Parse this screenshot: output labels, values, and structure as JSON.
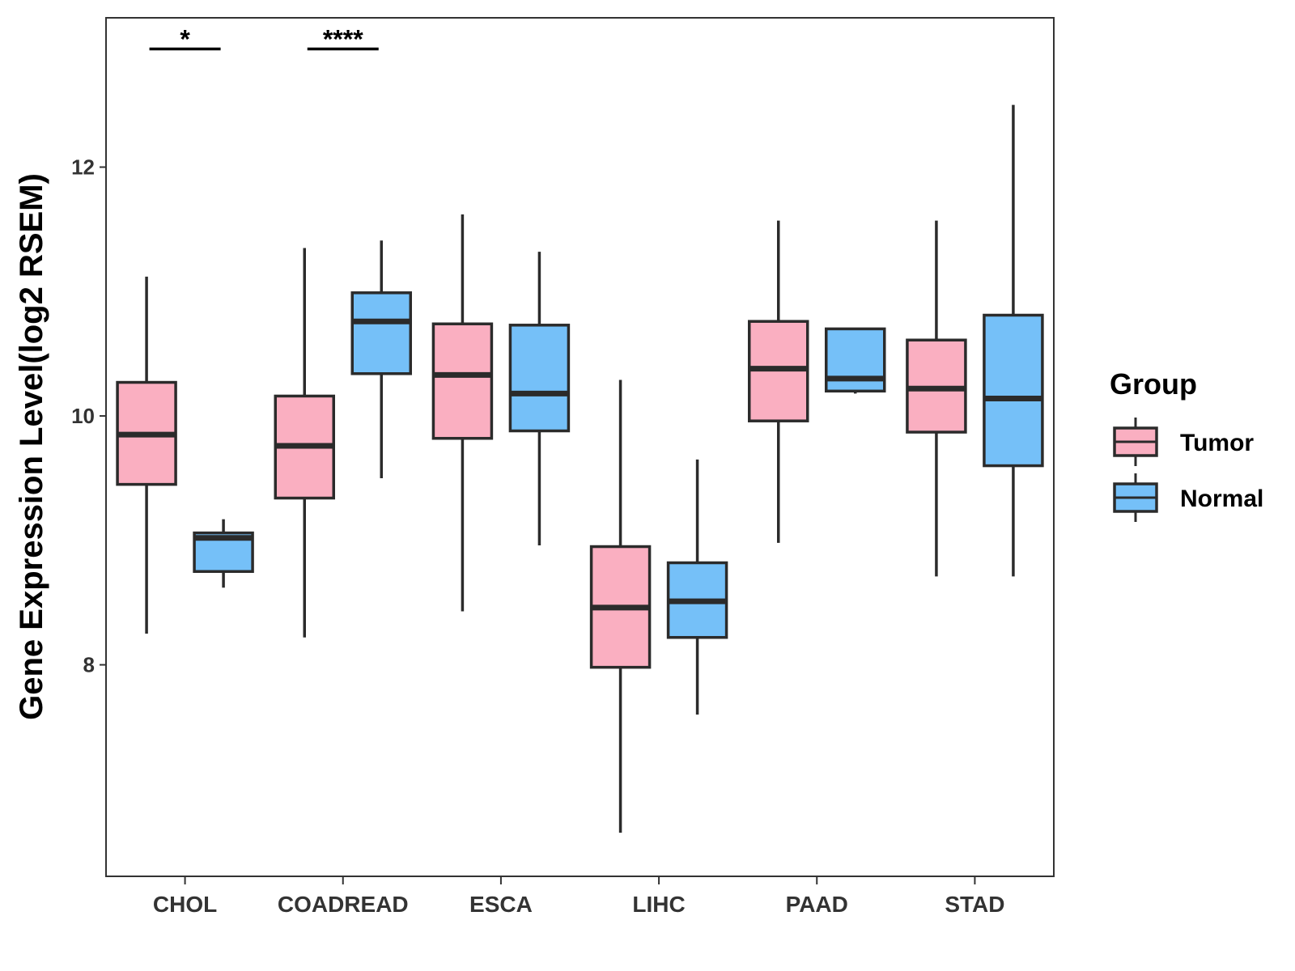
{
  "chart_data": {
    "type": "boxplot",
    "title": "",
    "xlabel": "",
    "ylabel": "Gene Expression Level(log2 RSEM)",
    "ylim": [
      6.3,
      13.2
    ],
    "yticks": [
      8,
      10,
      12
    ],
    "ytick_labels": [
      "8",
      "10",
      "12"
    ],
    "grid": false,
    "categories": [
      "CHOL",
      "COADREAD",
      "ESCA",
      "LIHC",
      "PAAD",
      "STAD"
    ],
    "legend": {
      "title": "Group",
      "position": "right",
      "entries": [
        {
          "name": "Tumor",
          "color": "#FAAFC1"
        },
        {
          "name": "Normal",
          "color": "#75C0F8"
        }
      ]
    },
    "series": [
      {
        "name": "Tumor",
        "color": "#FAAFC1",
        "boxes": [
          {
            "category": "CHOL",
            "whisker_low": 8.25,
            "q1": 9.45,
            "median": 9.85,
            "q3": 10.27,
            "whisker_high": 11.12
          },
          {
            "category": "COADREAD",
            "whisker_low": 8.22,
            "q1": 9.34,
            "median": 9.76,
            "q3": 10.16,
            "whisker_high": 11.35
          },
          {
            "category": "ESCA",
            "whisker_low": 8.43,
            "q1": 9.82,
            "median": 10.33,
            "q3": 10.74,
            "whisker_high": 11.62
          },
          {
            "category": "LIHC",
            "whisker_low": 6.65,
            "q1": 7.98,
            "median": 8.46,
            "q3": 8.95,
            "whisker_high": 10.29
          },
          {
            "category": "PAAD",
            "whisker_low": 8.98,
            "q1": 9.96,
            "median": 10.38,
            "q3": 10.76,
            "whisker_high": 11.57
          },
          {
            "category": "STAD",
            "whisker_low": 8.71,
            "q1": 9.87,
            "median": 10.22,
            "q3": 10.61,
            "whisker_high": 11.57
          }
        ]
      },
      {
        "name": "Normal",
        "color": "#75C0F8",
        "boxes": [
          {
            "category": "CHOL",
            "whisker_low": 8.62,
            "q1": 8.75,
            "median": 9.02,
            "q3": 9.06,
            "whisker_high": 9.17
          },
          {
            "category": "COADREAD",
            "whisker_low": 9.5,
            "q1": 10.34,
            "median": 10.76,
            "q3": 10.99,
            "whisker_high": 11.41
          },
          {
            "category": "ESCA",
            "whisker_low": 8.96,
            "q1": 9.88,
            "median": 10.18,
            "q3": 10.73,
            "whisker_high": 11.32
          },
          {
            "category": "LIHC",
            "whisker_low": 7.6,
            "q1": 8.22,
            "median": 8.51,
            "q3": 8.82,
            "whisker_high": 9.65
          },
          {
            "category": "PAAD",
            "whisker_low": 10.18,
            "q1": 10.2,
            "median": 10.3,
            "q3": 10.7,
            "whisker_high": 10.7
          },
          {
            "category": "STAD",
            "whisker_low": 8.71,
            "q1": 9.6,
            "median": 10.14,
            "q3": 10.81,
            "whisker_high": 12.5
          }
        ]
      }
    ],
    "annotations": [
      {
        "category": "CHOL",
        "label": "*",
        "y": 12.95
      },
      {
        "category": "COADREAD",
        "label": "****",
        "y": 12.95
      }
    ]
  }
}
